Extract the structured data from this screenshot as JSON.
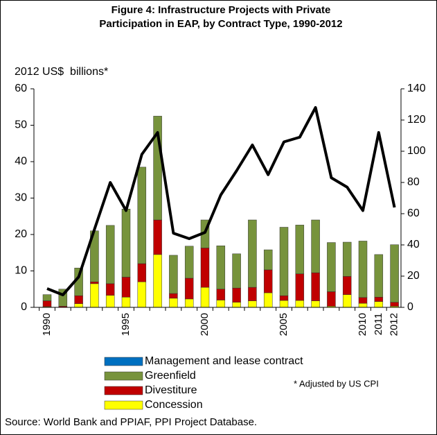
{
  "chart_data": {
    "type": "bar",
    "title": "Figure 4: Infrastructure Projects with Private Participation in EAP, by Contract Type, 1990-2012",
    "ylabel": "2012 US$  billions*",
    "note": "* Adjusted by US CPI",
    "source": "Source:  World Bank and PPIAF, PPI Project Database.",
    "categories": [
      "1990",
      null,
      null,
      null,
      null,
      "1995",
      null,
      null,
      null,
      null,
      "2000",
      null,
      null,
      null,
      null,
      "2005",
      null,
      null,
      null,
      null,
      "2010",
      "2011",
      "2012"
    ],
    "series": [
      {
        "name": "Concession",
        "color": "#ffff00",
        "values": [
          0.2,
          0,
          1,
          6.5,
          3.3,
          2.8,
          7,
          14.5,
          2.5,
          2.3,
          5.5,
          2,
          1.4,
          1.8,
          4,
          1.9,
          1.9,
          1.8,
          0.3,
          3.5,
          1.1,
          1.6,
          0.3
        ]
      },
      {
        "name": "Divestiture",
        "color": "#c00000",
        "values": [
          1.6,
          0.3,
          2.2,
          0.5,
          3.2,
          5.5,
          5,
          9.5,
          1.3,
          5.7,
          10.8,
          3,
          3.9,
          3.7,
          6.3,
          1.3,
          7.3,
          7.7,
          4,
          5,
          1.6,
          1.2,
          1.1
        ]
      },
      {
        "name": "Greenfield",
        "color": "#77933c",
        "values": [
          1.7,
          4.7,
          7.6,
          14,
          16,
          18.7,
          26.5,
          28.5,
          10.5,
          8.8,
          7.7,
          11.9,
          9.4,
          18.5,
          5.5,
          18.8,
          13.4,
          14.5,
          13.5,
          9.4,
          15.5,
          11.7,
          15.8
        ]
      },
      {
        "name": "Management and lease contract",
        "color": "#0070c0",
        "values": [
          0,
          0,
          0,
          0,
          0,
          0,
          0,
          0,
          0,
          0,
          0,
          0,
          0,
          0,
          0,
          0,
          0,
          0,
          0,
          0,
          0,
          0,
          0
        ]
      },
      {
        "type": "line",
        "axis": "y2",
        "color": "#000000",
        "values": [
          12,
          8,
          19.5,
          50,
          80,
          62,
          98,
          112,
          47.5,
          44,
          48,
          72,
          87.5,
          104,
          85,
          106,
          109,
          128,
          83,
          77,
          62,
          112,
          64
        ]
      }
    ],
    "ylim": [
      0,
      60
    ],
    "yticks": [
      0,
      10,
      20,
      30,
      40,
      50,
      60
    ],
    "y2lim": [
      0,
      140
    ],
    "y2ticks": [
      0,
      20,
      40,
      60,
      80,
      100,
      120,
      140
    ]
  }
}
